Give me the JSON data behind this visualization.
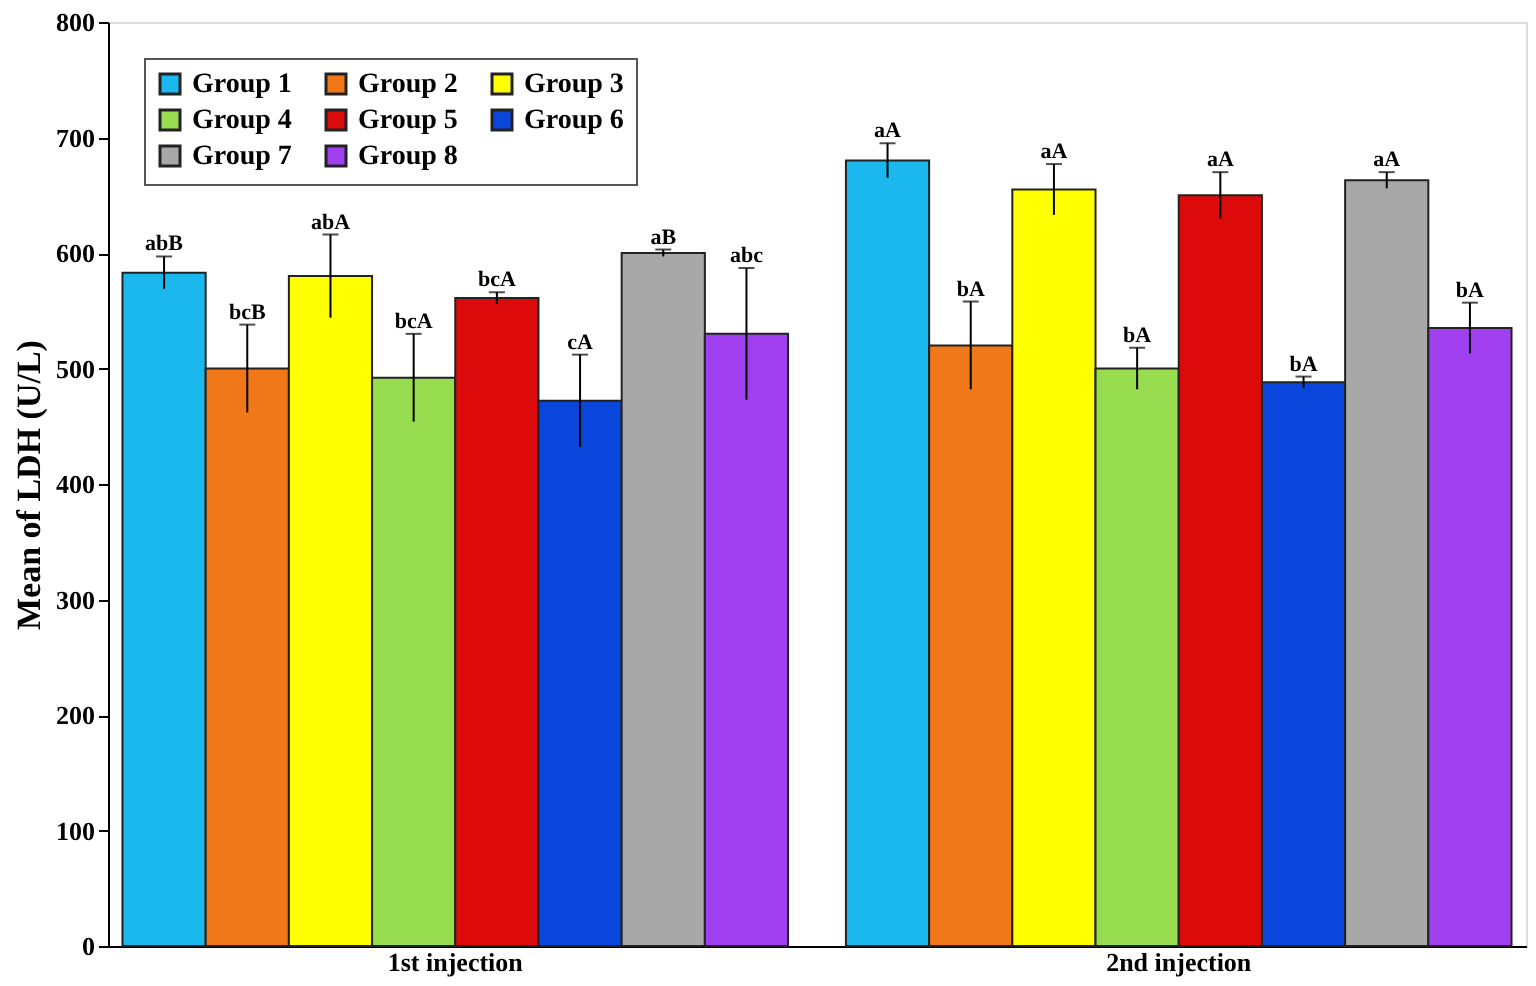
{
  "chart_data": {
    "type": "bar",
    "ylabel": "Mean of LDH (U/L)",
    "categories": [
      "1st injection",
      "2nd injection"
    ],
    "series": [
      {
        "name": "Group 1",
        "color": "#1ab8ee",
        "values": [
          583,
          680
        ],
        "errors": [
          14,
          15
        ],
        "value_labels": [
          "abB",
          "aA"
        ]
      },
      {
        "name": "Group 2",
        "color": "#f07818",
        "values": [
          500,
          520
        ],
        "errors": [
          38,
          38
        ],
        "value_labels": [
          "bcB",
          "bA"
        ]
      },
      {
        "name": "Group 3",
        "color": "#ffff00",
        "values": [
          580,
          655
        ],
        "errors": [
          36,
          22
        ],
        "value_labels": [
          "abA",
          "aA"
        ]
      },
      {
        "name": "Group 4",
        "color": "#98dc50",
        "values": [
          492,
          500
        ],
        "errors": [
          38,
          18
        ],
        "value_labels": [
          "bcA",
          "bA"
        ]
      },
      {
        "name": "Group 5",
        "color": "#dc0a0a",
        "values": [
          561,
          650
        ],
        "errors": [
          5,
          20
        ],
        "value_labels": [
          "bcA",
          "aA"
        ]
      },
      {
        "name": "Group 6",
        "color": "#0a46dc",
        "values": [
          472,
          488
        ],
        "errors": [
          40,
          5
        ],
        "value_labels": [
          "cA",
          "bA"
        ]
      },
      {
        "name": "Group 7",
        "color": "#a8a8a8",
        "values": [
          600,
          663
        ],
        "errors": [
          3,
          7
        ],
        "value_labels": [
          "aB",
          "aA"
        ]
      },
      {
        "name": "Group 8",
        "color": "#a040f0",
        "values": [
          530,
          535
        ],
        "errors": [
          57,
          22
        ],
        "value_labels": [
          "abc",
          "bA"
        ]
      }
    ],
    "ylim": [
      0,
      800
    ],
    "yticks": [
      0,
      100,
      200,
      300,
      400,
      500,
      600,
      700,
      800
    ],
    "grid": false,
    "legend": "top left"
  }
}
